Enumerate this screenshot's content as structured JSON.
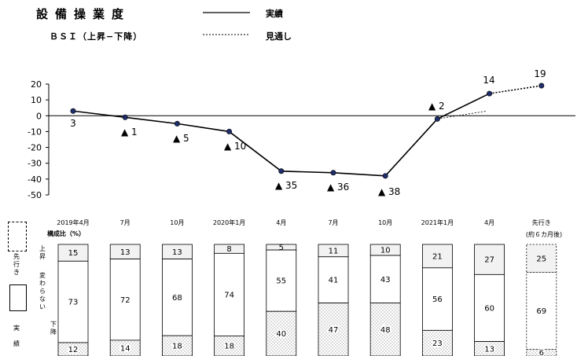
{
  "header": {
    "title": "設備操業度",
    "subtitle": "ＢＳＩ（上昇−下降）",
    "legend_actual": "実績",
    "legend_forecast": "見通し"
  },
  "composition": {
    "label": "構成比（%）",
    "row_up": "上昇",
    "row_flat": "変わらない",
    "row_down": "下降",
    "key_forecast": "先行き",
    "key_actual": "実績",
    "headers": [
      "2019年4月",
      "7月",
      "10月",
      "2020年1月",
      "4月",
      "7月",
      "10月",
      "2021年1月",
      "4月",
      "先行き"
    ],
    "forecast_note": "(約６カ月後)",
    "up": [
      15,
      13,
      13,
      8,
      5,
      11,
      10,
      21,
      27,
      25
    ],
    "flat": [
      73,
      72,
      68,
      74,
      55,
      41,
      43,
      56,
      60,
      69
    ],
    "down": [
      12,
      14,
      18,
      18,
      40,
      47,
      48,
      23,
      13,
      6
    ]
  },
  "chart_data": {
    "type": "line",
    "title": "設備操業度",
    "subtitle": "ＢＳＩ（上昇−下降）",
    "categories": [
      "2019年4月",
      "7月",
      "10月",
      "2020年1月",
      "4月",
      "7月",
      "10月",
      "2021年1月",
      "4月",
      "先行き"
    ],
    "series": [
      {
        "name": "実績",
        "values": [
          3,
          -1,
          -5,
          -10,
          -35,
          -36,
          -38,
          -2,
          14,
          null
        ],
        "style": "solid"
      },
      {
        "name": "見通し",
        "values": [
          null,
          null,
          null,
          null,
          null,
          null,
          null,
          -2,
          3,
          19
        ],
        "style": "dotted"
      }
    ],
    "point_labels": [
      "3",
      "▲ 1",
      "▲ 5",
      "▲ 10",
      "▲ 35",
      "▲ 36",
      "▲ 38",
      "▲ 2",
      "14",
      "19"
    ],
    "ylim": [
      -50,
      20
    ],
    "yticks": [
      20,
      10,
      0,
      -10,
      -20,
      -30,
      -40,
      -50
    ],
    "grid": false,
    "colors": {
      "line": "#000000",
      "marker": "#1f2d6b",
      "up_fill": "#f2f2f2",
      "flat_fill": "#ffffff",
      "down_fill": "#ffffff"
    }
  }
}
